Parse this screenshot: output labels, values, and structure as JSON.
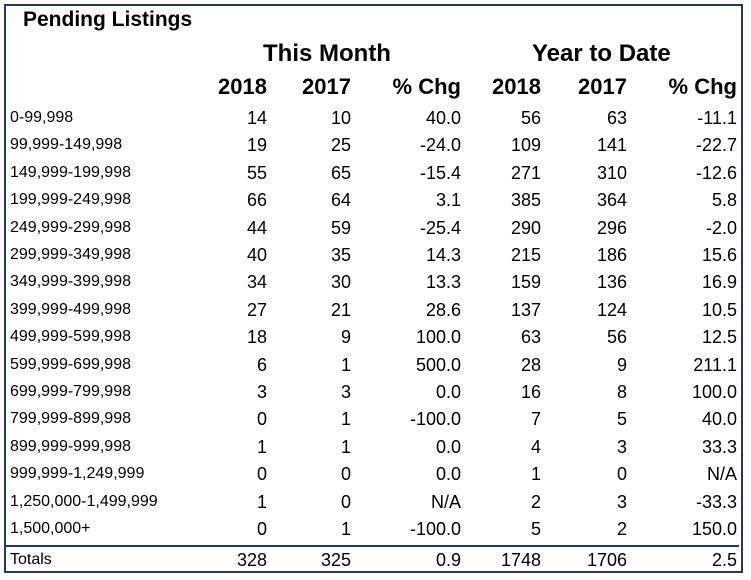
{
  "title": "Pending Listings",
  "groups": {
    "this_month": "This Month",
    "year_to_date": "Year to Date"
  },
  "columns": [
    "2018",
    "2017",
    "% Chg",
    "2018",
    "2017",
    "% Chg"
  ],
  "rows": [
    {
      "range": "0-99,998",
      "m2018": "14",
      "m2017": "10",
      "mchg": "40.0",
      "y2018": "56",
      "y2017": "63",
      "ychg": "-11.1"
    },
    {
      "range": "99,999-149,998",
      "m2018": "19",
      "m2017": "25",
      "mchg": "-24.0",
      "y2018": "109",
      "y2017": "141",
      "ychg": "-22.7"
    },
    {
      "range": "149,999-199,998",
      "m2018": "55",
      "m2017": "65",
      "mchg": "-15.4",
      "y2018": "271",
      "y2017": "310",
      "ychg": "-12.6"
    },
    {
      "range": "199,999-249,998",
      "m2018": "66",
      "m2017": "64",
      "mchg": "3.1",
      "y2018": "385",
      "y2017": "364",
      "ychg": "5.8"
    },
    {
      "range": "249,999-299,998",
      "m2018": "44",
      "m2017": "59",
      "mchg": "-25.4",
      "y2018": "290",
      "y2017": "296",
      "ychg": "-2.0"
    },
    {
      "range": "299,999-349,998",
      "m2018": "40",
      "m2017": "35",
      "mchg": "14.3",
      "y2018": "215",
      "y2017": "186",
      "ychg": "15.6"
    },
    {
      "range": "349,999-399,998",
      "m2018": "34",
      "m2017": "30",
      "mchg": "13.3",
      "y2018": "159",
      "y2017": "136",
      "ychg": "16.9"
    },
    {
      "range": "399,999-499,998",
      "m2018": "27",
      "m2017": "21",
      "mchg": "28.6",
      "y2018": "137",
      "y2017": "124",
      "ychg": "10.5"
    },
    {
      "range": "499,999-599,998",
      "m2018": "18",
      "m2017": "9",
      "mchg": "100.0",
      "y2018": "63",
      "y2017": "56",
      "ychg": "12.5"
    },
    {
      "range": "599,999-699,998",
      "m2018": "6",
      "m2017": "1",
      "mchg": "500.0",
      "y2018": "28",
      "y2017": "9",
      "ychg": "211.1"
    },
    {
      "range": "699,999-799,998",
      "m2018": "3",
      "m2017": "3",
      "mchg": "0.0",
      "y2018": "16",
      "y2017": "8",
      "ychg": "100.0"
    },
    {
      "range": "799,999-899,998",
      "m2018": "0",
      "m2017": "1",
      "mchg": "-100.0",
      "y2018": "7",
      "y2017": "5",
      "ychg": "40.0"
    },
    {
      "range": "899,999-999,998",
      "m2018": "1",
      "m2017": "1",
      "mchg": "0.0",
      "y2018": "4",
      "y2017": "3",
      "ychg": "33.3"
    },
    {
      "range": "999,999-1,249,999",
      "m2018": "0",
      "m2017": "0",
      "mchg": "0.0",
      "y2018": "1",
      "y2017": "0",
      "ychg": "N/A"
    },
    {
      "range": "1,250,000-1,499,999",
      "m2018": "1",
      "m2017": "0",
      "mchg": "N/A",
      "y2018": "2",
      "y2017": "3",
      "ychg": "-33.3"
    },
    {
      "range": "1,500,000+",
      "m2018": "0",
      "m2017": "1",
      "mchg": "-100.0",
      "y2018": "5",
      "y2017": "2",
      "ychg": "150.0"
    }
  ],
  "totals": {
    "range": "Totals",
    "m2018": "328",
    "m2017": "325",
    "mchg": "0.9",
    "y2018": "1748",
    "y2017": "1706",
    "ychg": "2.5"
  },
  "colors": {
    "border": "#1f3a68"
  }
}
